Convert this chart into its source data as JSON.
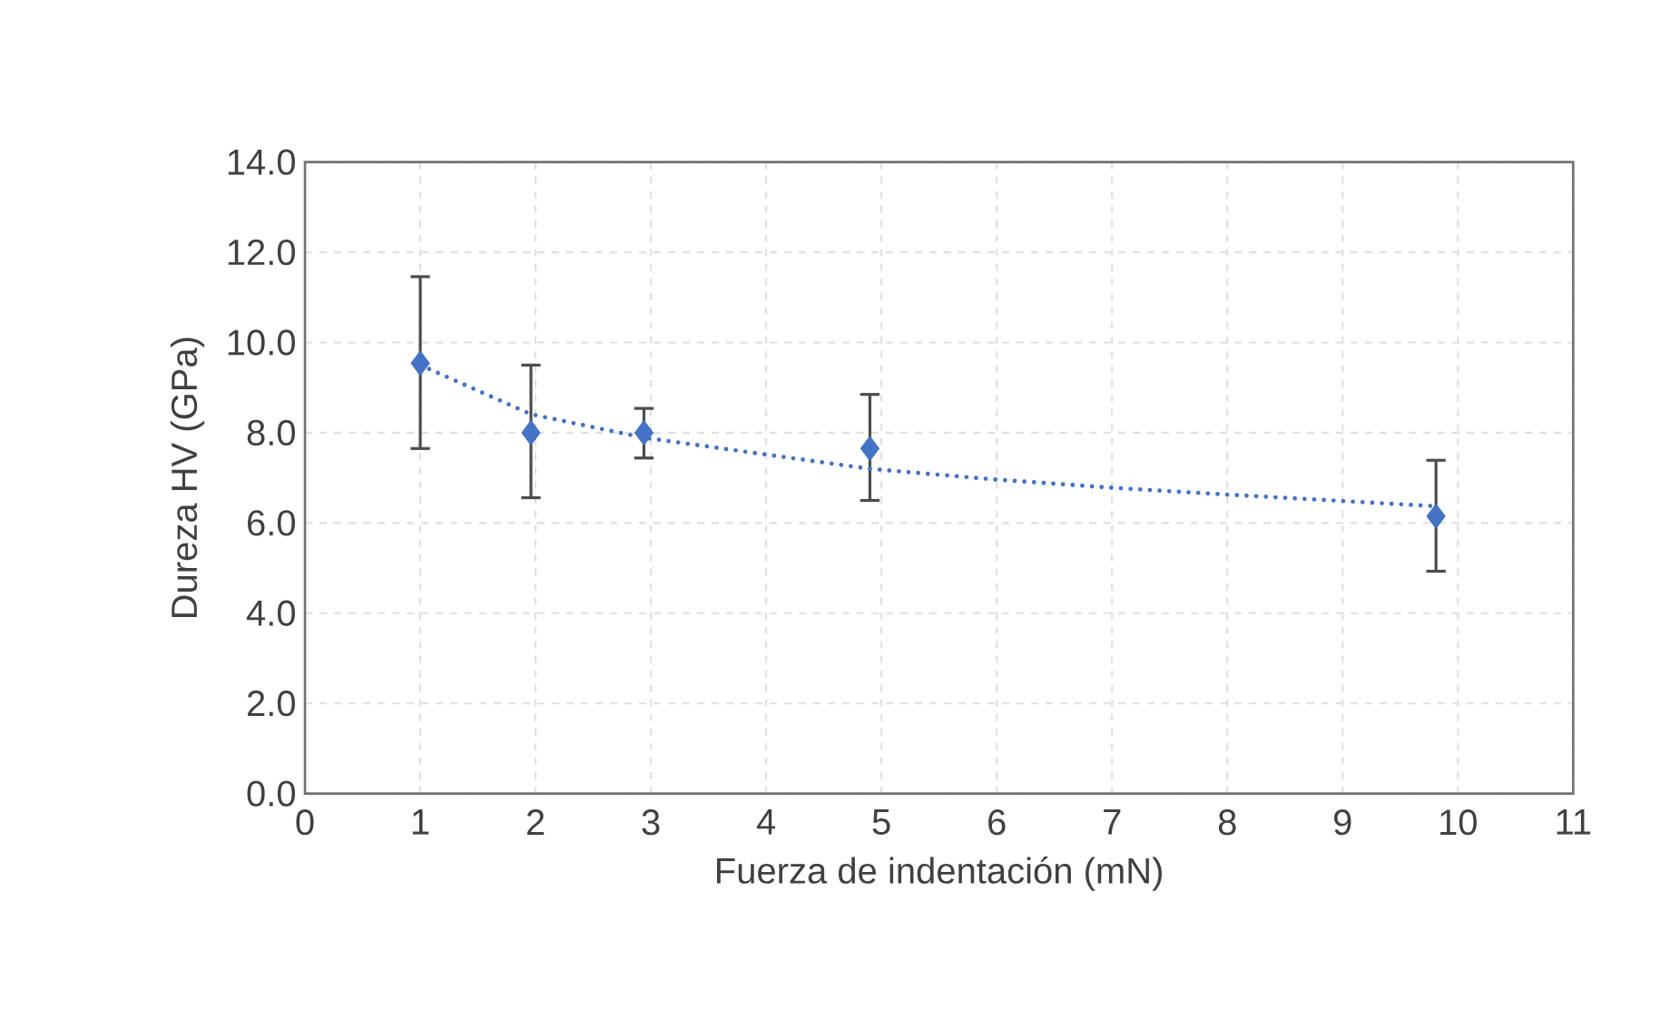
{
  "chart_data": {
    "type": "scatter",
    "xlabel": "Fuerza de indentación (mN)",
    "ylabel": "Dureza HV (GPa)",
    "xlim": [
      0,
      11
    ],
    "xticks": [
      0,
      1,
      2,
      3,
      4,
      5,
      6,
      7,
      8,
      9,
      10,
      11
    ],
    "ylim": [
      0,
      14
    ],
    "yticks": [
      {
        "value": 0,
        "label": "0.0"
      },
      {
        "value": 2,
        "label": "2.0"
      },
      {
        "value": 4,
        "label": "4.0"
      },
      {
        "value": 6,
        "label": "6.0"
      },
      {
        "value": 8,
        "label": "8.0"
      },
      {
        "value": 10,
        "label": "10.0"
      },
      {
        "value": 12,
        "label": "12.0"
      },
      {
        "value": 14,
        "label": "14.0"
      }
    ],
    "grid": true,
    "series": [
      {
        "color": "#4472c4",
        "marker": "diamond",
        "x": [
          1,
          1.96,
          2.94,
          4.9,
          9.81
        ],
        "values": [
          9.54,
          8.0,
          8.0,
          7.65,
          6.15
        ],
        "errors": [
          [
            7.65,
            11.46
          ],
          [
            6.56,
            9.5
          ],
          [
            7.44,
            8.54
          ],
          [
            6.5,
            8.85
          ],
          [
            4.93,
            7.39
          ]
        ]
      },
      {
        "type": "line",
        "color": "#4472c4",
        "line_style": "dotted",
        "marker": "none",
        "x": [
          1,
          1.96,
          2.94,
          4.9,
          6,
          7,
          8,
          9.81
        ],
        "values": [
          9.5,
          8.41,
          7.89,
          7.2,
          6.96,
          6.78,
          6.63,
          6.37
        ]
      }
    ]
  }
}
